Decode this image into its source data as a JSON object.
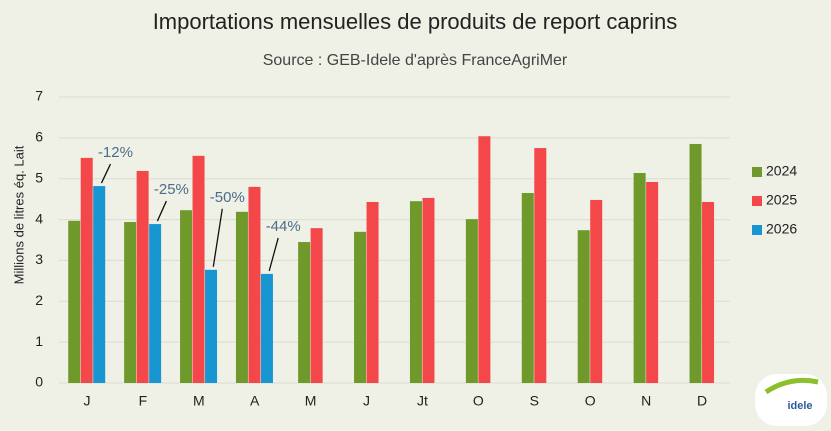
{
  "chart_data": {
    "type": "bar",
    "title": "Importations mensuelles de produits de report caprins",
    "subtitle": "Source : GEB-Idele d'après FranceAgriMer",
    "y_label": "Millions de litres éq. Lait",
    "categories": [
      "J",
      "F",
      "M",
      "A",
      "M",
      "J",
      "Jt",
      "O",
      "S",
      "O",
      "N",
      "D"
    ],
    "series": [
      {
        "name": "2024",
        "color": "#6f9a2b",
        "values": [
          3.97,
          3.94,
          4.23,
          4.19,
          3.45,
          3.7,
          4.45,
          4.01,
          4.65,
          3.74,
          5.14,
          5.85
        ]
      },
      {
        "name": "2025",
        "color": "#f4474a",
        "values": [
          5.51,
          5.19,
          5.56,
          4.8,
          3.79,
          4.43,
          4.53,
          6.04,
          5.75,
          4.48,
          4.92,
          4.43
        ]
      },
      {
        "name": "2026",
        "color": "#1896d1",
        "values": [
          4.82,
          3.89,
          2.77,
          2.67,
          null,
          null,
          null,
          null,
          null,
          null,
          null,
          null
        ]
      }
    ],
    "annotations": [
      "-12%",
      "-25%",
      "-50%",
      "-44%"
    ],
    "ylim": [
      0,
      7
    ],
    "yticks": [
      0,
      1,
      2,
      3,
      4,
      5,
      6,
      7
    ],
    "grid": true,
    "legend": "right",
    "logo": "idele"
  }
}
